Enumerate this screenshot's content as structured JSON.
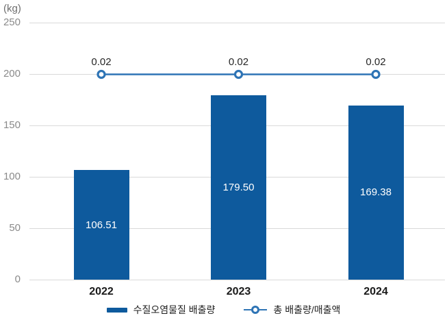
{
  "unit_label": "(kg)",
  "colors": {
    "bar": "#0e5a9d",
    "line": "#2e74b5",
    "grid": "#d9d9d9",
    "y_tick_text": "#8a8a8a",
    "x_tick_text": "#1a1a1a",
    "bar_value_text": "#ffffff",
    "point_label_text": "#262626",
    "legend_text": "#1f1f1f",
    "background": "#ffffff"
  },
  "chart_data": {
    "type": "bar",
    "subtype": "bar+line combo",
    "title": "",
    "categories": [
      "2022",
      "2023",
      "2024"
    ],
    "series": [
      {
        "name": "수질오염물질 배출량",
        "type": "bar",
        "axis": "left",
        "values": [
          106.51,
          179.5,
          169.38
        ],
        "value_labels": [
          "106.51",
          "179.50",
          "169.38"
        ]
      },
      {
        "name": "총 배출량/매출액",
        "type": "line",
        "axis": "right",
        "values": [
          0.02,
          0.02,
          0.02
        ],
        "value_labels": [
          "0.02",
          "0.02",
          "0.02"
        ]
      }
    ],
    "xlabel": "",
    "ylabel": "(kg)",
    "yticks": [
      0,
      50,
      100,
      150,
      200,
      250
    ],
    "ytick_labels": [
      "0",
      "50",
      "100",
      "150",
      "200",
      "250"
    ],
    "ylim": [
      0,
      250
    ],
    "grid": true,
    "legend_position": "bottom"
  },
  "legend": {
    "items": [
      {
        "label": "수질오염물질 배출량",
        "marker": "bar-swatch"
      },
      {
        "label": "총 배출량/매출액",
        "marker": "line-circle-swatch"
      }
    ]
  }
}
